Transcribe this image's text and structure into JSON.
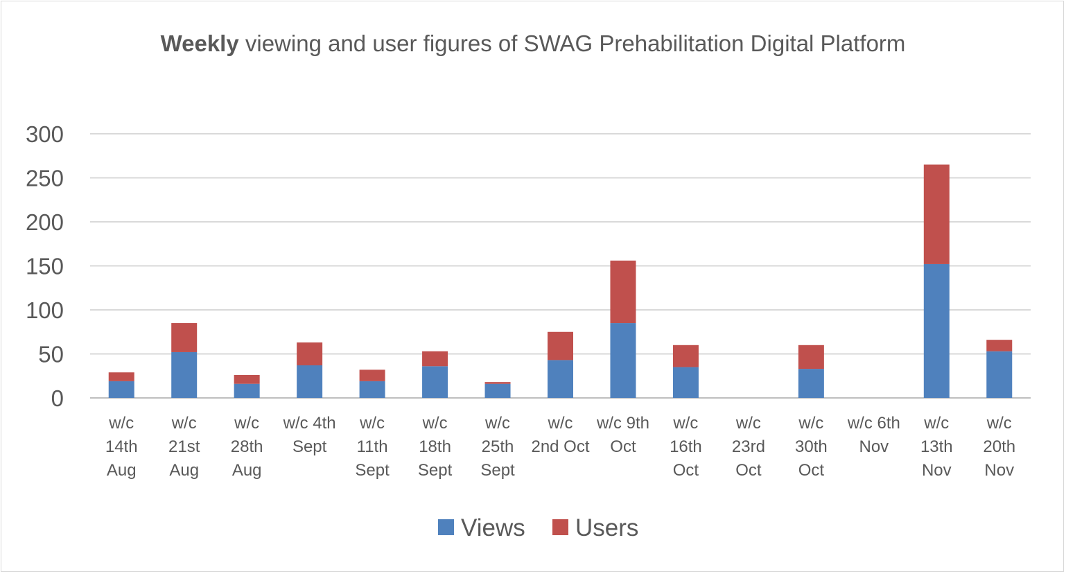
{
  "chart_data": {
    "type": "bar",
    "stacked": true,
    "title_bold": "Weekly",
    "title_rest": " viewing and user figures of SWAG Prehabilitation Digital Platform",
    "categories": [
      [
        "w/c",
        "14th",
        "Aug"
      ],
      [
        "w/c",
        "21st",
        "Aug"
      ],
      [
        "w/c",
        "28th",
        "Aug"
      ],
      [
        "w/c 4th",
        "Sept"
      ],
      [
        "w/c",
        "11th",
        "Sept"
      ],
      [
        "w/c",
        "18th",
        "Sept"
      ],
      [
        "w/c",
        "25th",
        "Sept"
      ],
      [
        "w/c",
        "2nd Oct"
      ],
      [
        "w/c 9th",
        "Oct"
      ],
      [
        "w/c",
        "16th",
        "Oct"
      ],
      [
        "w/c",
        "23rd",
        "Oct"
      ],
      [
        "w/c",
        "30th",
        "Oct"
      ],
      [
        "w/c 6th",
        "Nov"
      ],
      [
        "w/c",
        "13th",
        "Nov"
      ],
      [
        "w/c",
        "20th",
        "Nov"
      ]
    ],
    "series": [
      {
        "name": "Views",
        "color": "#4f81bd",
        "values": [
          19,
          52,
          16,
          37,
          19,
          36,
          16,
          43,
          85,
          35,
          0,
          33,
          0,
          152,
          53
        ]
      },
      {
        "name": "Users",
        "color": "#c0504d",
        "values": [
          10,
          33,
          10,
          26,
          13,
          17,
          2,
          32,
          71,
          25,
          0,
          27,
          0,
          113,
          13
        ]
      }
    ],
    "ylim": [
      0,
      300
    ],
    "yticks": [
      0,
      50,
      100,
      150,
      200,
      250,
      300
    ],
    "grid": true,
    "legend_position": "bottom"
  }
}
